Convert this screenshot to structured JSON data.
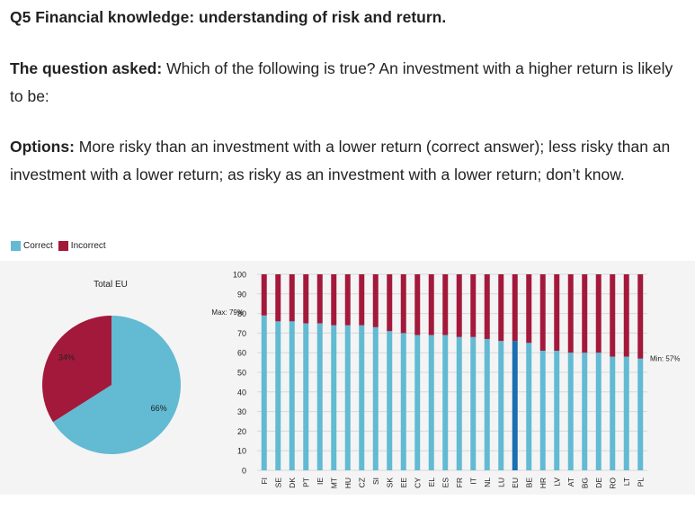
{
  "heading": "Q5 Financial knowledge: understanding of risk and return.",
  "question": {
    "label": "The question asked:",
    "text": " Which of the following is true? An investment with a higher return is likely to be:"
  },
  "options": {
    "label": "Options:",
    "text": " More risky than an investment with a lower return (correct answer); less risky than an investment with a lower return; as risky as an investment with a lower return; don’t know."
  },
  "colors": {
    "correct": "#62bad3",
    "incorrect": "#a3193b",
    "eu_highlight": "#1a6fb0"
  },
  "legend": {
    "correct": "Correct",
    "incorrect": "Incorrect"
  },
  "chart_data": [
    {
      "type": "pie",
      "title": "Total EU",
      "labels": [
        "Correct",
        "Incorrect"
      ],
      "values": [
        66,
        34
      ],
      "value_labels": [
        "66%",
        "34%"
      ]
    },
    {
      "type": "bar",
      "stacked": true,
      "categories": [
        "FI",
        "SE",
        "DK",
        "PT",
        "IE",
        "MT",
        "HU",
        "CZ",
        "SI",
        "SK",
        "EE",
        "CY",
        "EL",
        "ES",
        "FR",
        "IT",
        "NL",
        "LU",
        "EU",
        "BE",
        "HR",
        "LV",
        "AT",
        "BG",
        "DE",
        "RO",
        "LT",
        "PL"
      ],
      "series": [
        {
          "name": "Correct",
          "values": [
            79,
            76,
            76,
            75,
            75,
            74,
            74,
            74,
            73,
            71,
            70,
            69,
            69,
            69,
            68,
            68,
            67,
            66,
            66,
            65,
            61,
            61,
            60,
            60,
            60,
            58,
            58,
            57
          ]
        },
        {
          "name": "Incorrect",
          "values": [
            21,
            24,
            24,
            25,
            25,
            26,
            26,
            26,
            27,
            29,
            30,
            31,
            31,
            31,
            32,
            32,
            33,
            34,
            34,
            35,
            39,
            39,
            40,
            40,
            40,
            42,
            42,
            43
          ]
        }
      ],
      "ylim": [
        0,
        100
      ],
      "yticks": [
        "0",
        "10",
        "20",
        "30",
        "40",
        "50",
        "60",
        "70",
        "80",
        "90",
        "100"
      ],
      "annotations": {
        "max": "Max: 79%",
        "min": "Min: 57%"
      }
    }
  ]
}
